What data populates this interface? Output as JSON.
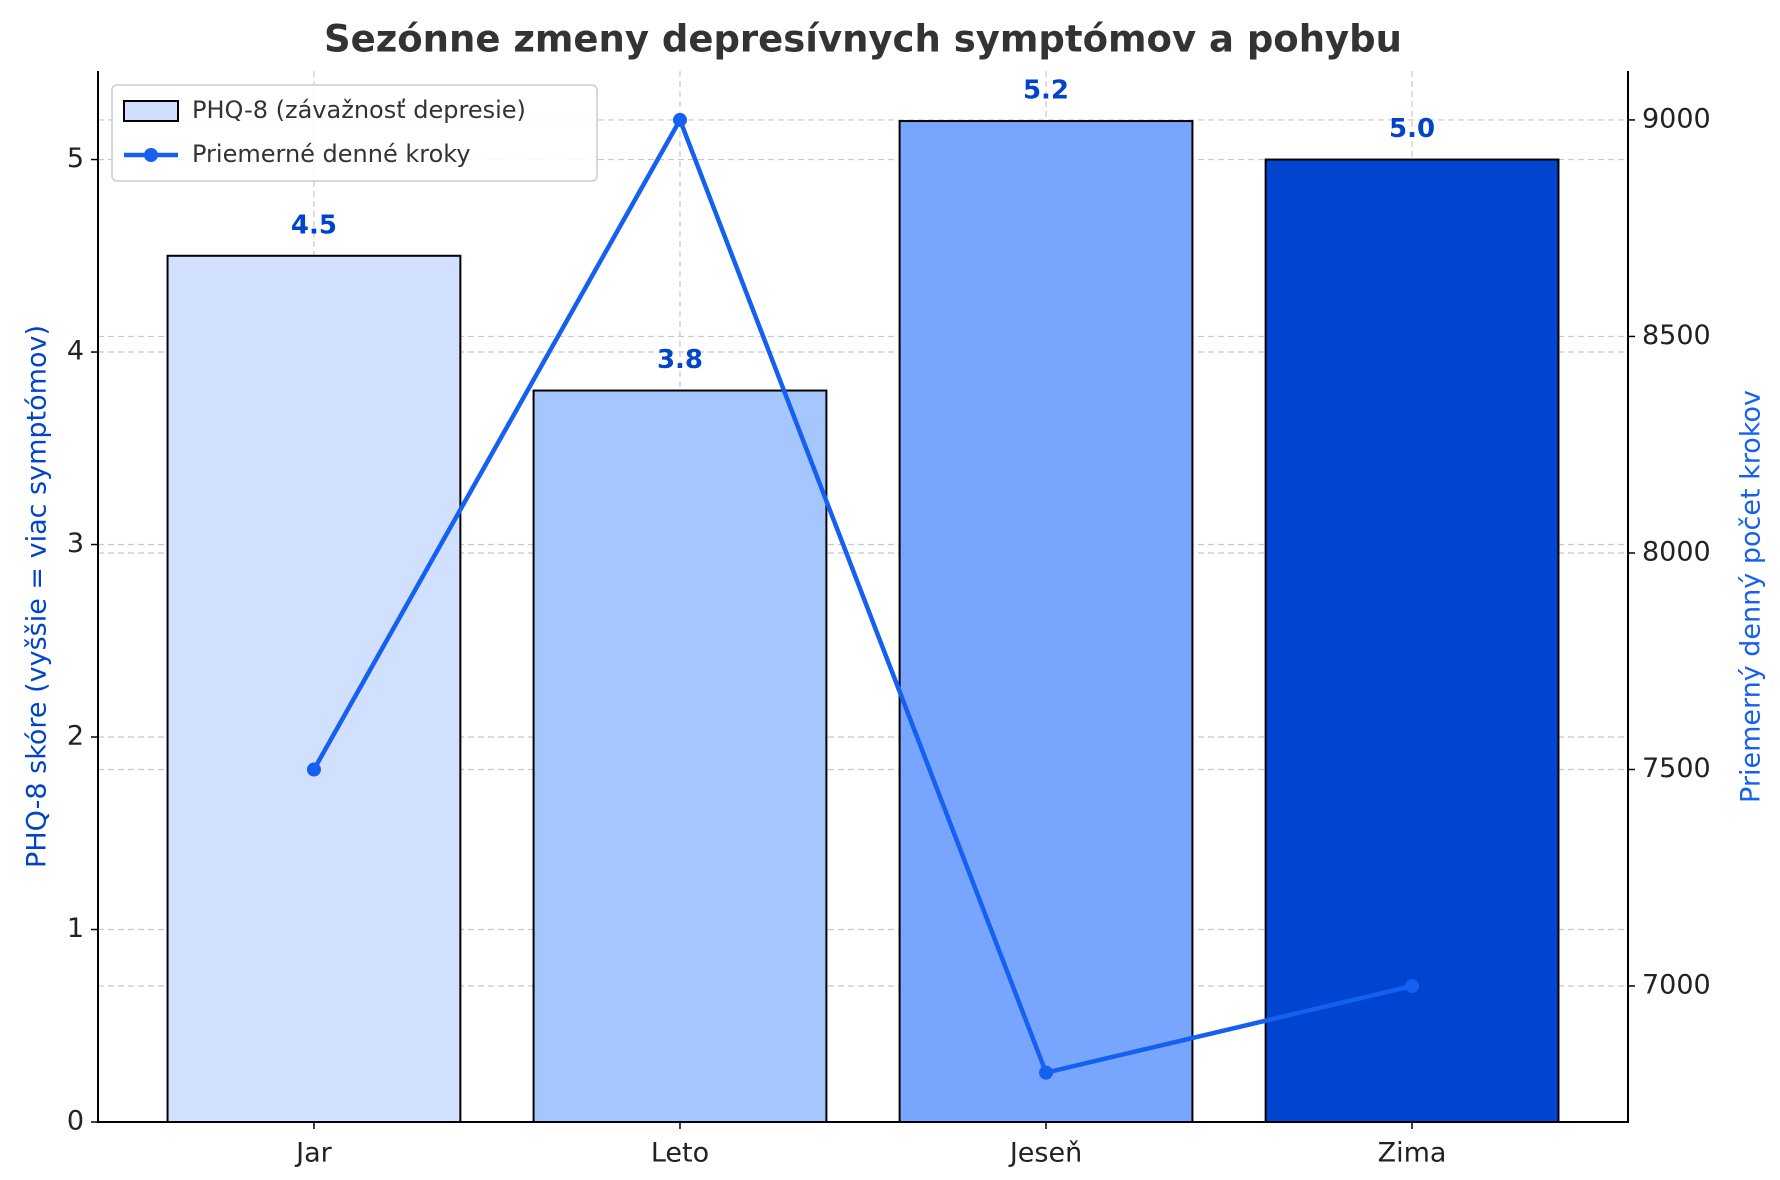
{
  "chart_data": {
    "type": "bar",
    "title": "Sezónne zmeny depresívnych symptómov a pohybu",
    "categories": [
      "Jar",
      "Leto",
      "Jeseň",
      "Zima"
    ],
    "series": [
      {
        "name": "PHQ-8 (závažnosť depresie)",
        "type": "bar",
        "colors": [
          "#d1e0ff",
          "#a6c6ff",
          "#78a6ff",
          "#0044cf"
        ],
        "color": "#d1e0ff",
        "values": [
          4.5,
          3.8,
          5.2,
          5.0
        ],
        "value_labels": [
          "4.5",
          "3.8",
          "5.2",
          "5.0"
        ],
        "label_color": "#0044cc"
      },
      {
        "name": "Priemerné denné kroky",
        "type": "line",
        "axis": "y2",
        "color": "#1560f0",
        "values": [
          7500,
          9000,
          6800,
          7000
        ]
      }
    ],
    "ylabel": "PHQ-8 skóre (vyššie = viac symptómov)",
    "y2label": "Priemerný denný počet krokov",
    "ylabel_color": "#0044cc",
    "y2label_color": "#1560f0",
    "ylim": [
      0,
      5.46
    ],
    "yticks": [
      0,
      1,
      2,
      3,
      4,
      5
    ],
    "y2lim": [
      6686,
      9113
    ],
    "y2ticks": [
      7000,
      7500,
      8000,
      8500,
      9000
    ],
    "grid": true,
    "legend": "upper-left"
  }
}
